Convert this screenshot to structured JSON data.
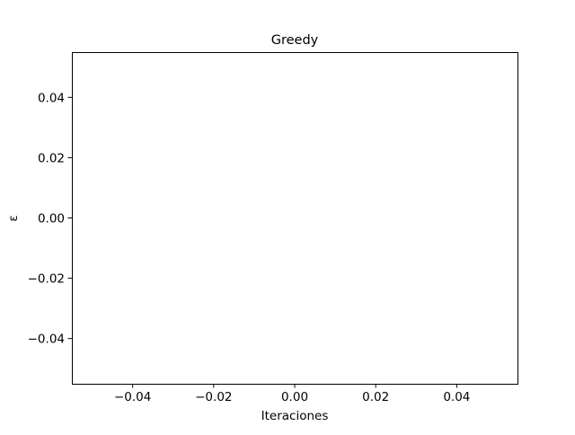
{
  "chart_data": {
    "type": "line",
    "title": "Greedy",
    "xlabel": "Iteraciones",
    "ylabel": "ε",
    "xlim": [
      -0.055,
      0.055
    ],
    "ylim": [
      -0.055,
      0.055
    ],
    "xticks": [
      -0.04,
      -0.02,
      0.0,
      0.02,
      0.04
    ],
    "xtick_labels": [
      "−0.04",
      "−0.02",
      "0.00",
      "0.02",
      "0.04"
    ],
    "yticks": [
      -0.04,
      -0.02,
      0.0,
      0.02,
      0.04
    ],
    "ytick_labels": [
      "−0.04",
      "−0.02",
      "0.00",
      "0.02",
      "0.04"
    ],
    "grid": false,
    "series": []
  }
}
